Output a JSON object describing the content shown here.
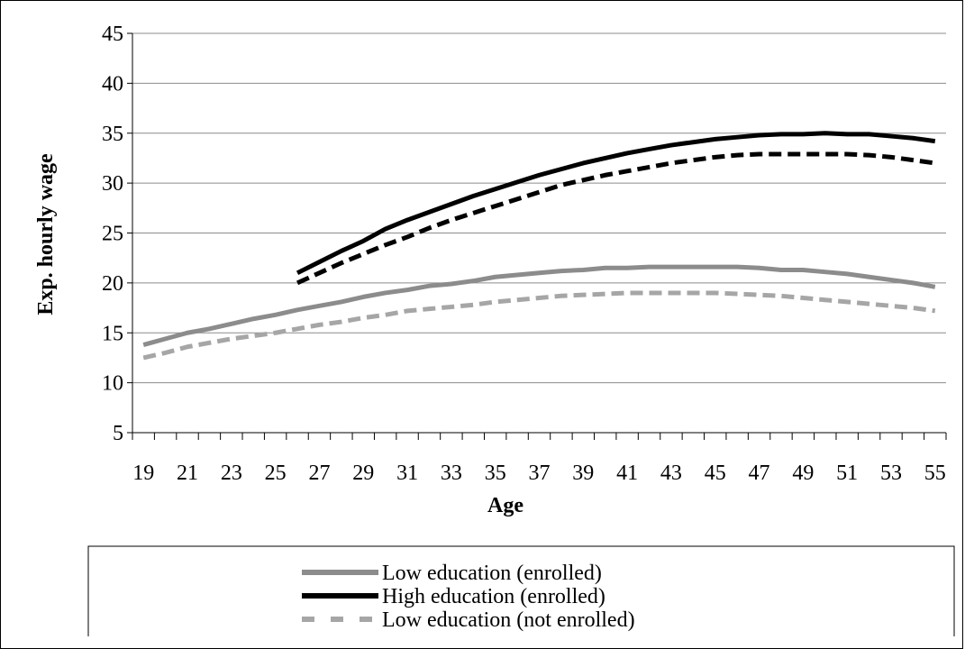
{
  "chart_data": {
    "type": "line",
    "xlabel": "Age",
    "ylabel": "Exp. hourly wage",
    "ylim": [
      5,
      45
    ],
    "yticks": [
      5,
      10,
      15,
      20,
      25,
      30,
      35,
      40,
      45
    ],
    "xlim": [
      19,
      55
    ],
    "xtick_labels": [
      19,
      21,
      23,
      25,
      27,
      29,
      31,
      33,
      35,
      37,
      39,
      41,
      43,
      45,
      47,
      49,
      51,
      53,
      55
    ],
    "grid": true,
    "legend_position": "bottom",
    "series": [
      {
        "name": "Low education (enrolled)",
        "color": "#8c8c8c",
        "dash": "solid",
        "x": [
          19,
          20,
          21,
          22,
          23,
          24,
          25,
          26,
          27,
          28,
          29,
          30,
          31,
          32,
          33,
          34,
          35,
          36,
          37,
          38,
          39,
          40,
          41,
          42,
          43,
          44,
          45,
          46,
          47,
          48,
          49,
          50,
          51,
          52,
          53,
          54,
          55
        ],
        "values": [
          13.8,
          14.4,
          15.0,
          15.4,
          15.9,
          16.4,
          16.8,
          17.3,
          17.7,
          18.1,
          18.6,
          19.0,
          19.3,
          19.7,
          19.9,
          20.2,
          20.6,
          20.8,
          21.0,
          21.2,
          21.3,
          21.5,
          21.5,
          21.6,
          21.6,
          21.6,
          21.6,
          21.6,
          21.5,
          21.3,
          21.3,
          21.1,
          20.9,
          20.6,
          20.3,
          20.0,
          19.6
        ]
      },
      {
        "name": "High education (enrolled)",
        "color": "#000000",
        "dash": "solid",
        "x": [
          26,
          27,
          28,
          29,
          30,
          31,
          32,
          33,
          34,
          35,
          36,
          37,
          38,
          39,
          40,
          41,
          42,
          43,
          44,
          45,
          46,
          47,
          48,
          49,
          50,
          51,
          52,
          53,
          54,
          55
        ],
        "values": [
          21.0,
          22.1,
          23.2,
          24.2,
          25.4,
          26.3,
          27.1,
          27.9,
          28.7,
          29.4,
          30.1,
          30.8,
          31.4,
          32.0,
          32.5,
          33.0,
          33.4,
          33.8,
          34.1,
          34.4,
          34.6,
          34.8,
          34.9,
          34.9,
          35.0,
          34.9,
          34.9,
          34.7,
          34.5,
          34.2
        ]
      },
      {
        "name": "Low education (not enrolled)",
        "color": "#a6a6a6",
        "dash": "dashed",
        "x": [
          19,
          20,
          21,
          22,
          23,
          24,
          25,
          26,
          27,
          28,
          29,
          30,
          31,
          32,
          33,
          34,
          35,
          36,
          37,
          38,
          39,
          40,
          41,
          42,
          43,
          44,
          45,
          46,
          47,
          48,
          49,
          50,
          51,
          52,
          53,
          54,
          55
        ],
        "values": [
          12.5,
          13.0,
          13.6,
          14.0,
          14.4,
          14.7,
          15.0,
          15.4,
          15.8,
          16.1,
          16.5,
          16.8,
          17.2,
          17.4,
          17.6,
          17.8,
          18.1,
          18.3,
          18.5,
          18.7,
          18.8,
          18.9,
          19.0,
          19.0,
          19.0,
          19.0,
          19.0,
          18.9,
          18.8,
          18.7,
          18.5,
          18.3,
          18.1,
          17.9,
          17.7,
          17.5,
          17.2
        ]
      },
      {
        "name": "",
        "color": "#000000",
        "dash": "dashed",
        "x": [
          26,
          27,
          28,
          29,
          30,
          31,
          32,
          33,
          34,
          35,
          36,
          37,
          38,
          39,
          40,
          41,
          42,
          43,
          44,
          45,
          46,
          47,
          48,
          49,
          50,
          51,
          52,
          53,
          54,
          55
        ],
        "values": [
          20.0,
          21.0,
          22.0,
          22.9,
          23.8,
          24.6,
          25.5,
          26.3,
          27.0,
          27.7,
          28.4,
          29.1,
          29.8,
          30.3,
          30.8,
          31.2,
          31.6,
          32.0,
          32.3,
          32.6,
          32.8,
          32.9,
          32.9,
          32.9,
          32.9,
          32.9,
          32.8,
          32.6,
          32.3,
          32.0
        ]
      }
    ],
    "legend_entries": [
      {
        "label": "Low education (enrolled)",
        "color": "#8c8c8c",
        "dash": "solid"
      },
      {
        "label": "High education (enrolled)",
        "color": "#000000",
        "dash": "solid"
      },
      {
        "label": "Low education (not enrolled)",
        "color": "#a6a6a6",
        "dash": "dashed"
      }
    ]
  }
}
